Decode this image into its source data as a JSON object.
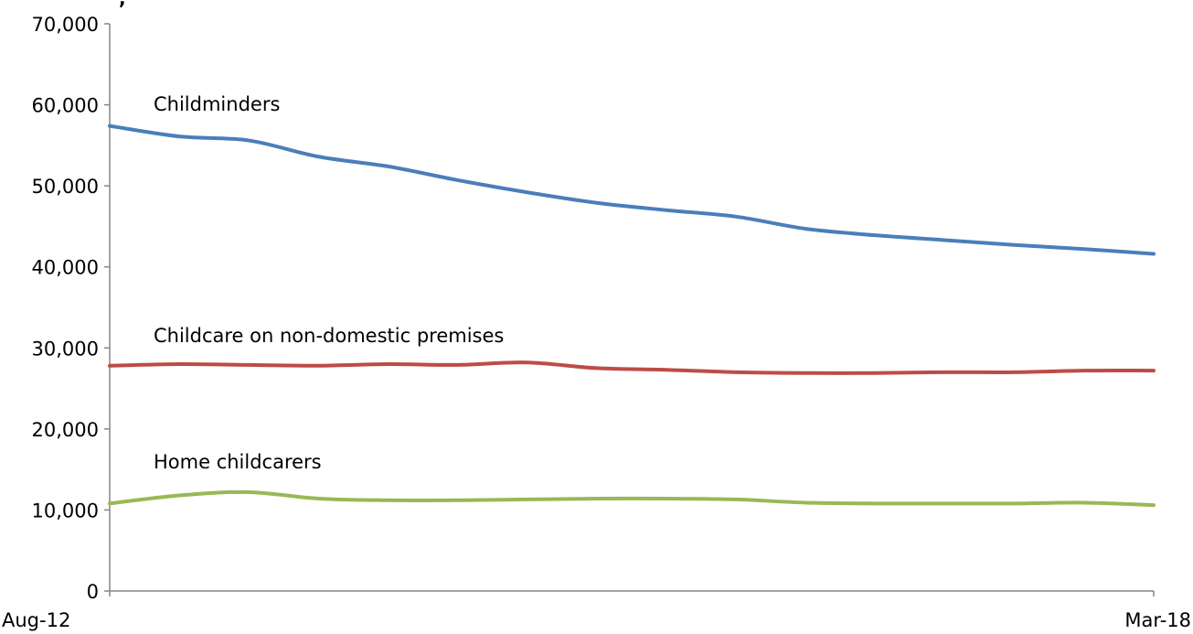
{
  "chart_data": {
    "type": "line",
    "title": "",
    "title_fragment": ", ",
    "xlabel": "",
    "ylabel": "",
    "x_tick_labels": [
      "Aug-12",
      "Mar-18"
    ],
    "x": [
      "Aug-12",
      "",
      "",
      "",
      "",
      "",
      "",
      "",
      "",
      "",
      "",
      "",
      "",
      "",
      "",
      "Mar-18"
    ],
    "y_ticks": [
      "0",
      "10,000",
      "20,000",
      "30,000",
      "40,000",
      "50,000",
      "60,000",
      "70,000"
    ],
    "ylim": [
      0,
      70000
    ],
    "grid": false,
    "legend": "none",
    "series": [
      {
        "name": "Childminders",
        "color": "#4a7ebb",
        "values": [
          57400,
          56100,
          55600,
          53600,
          52400,
          50700,
          49200,
          47900,
          47000,
          46200,
          44700,
          43900,
          43300,
          42700,
          42200,
          41600
        ]
      },
      {
        "name": "Childcare on non-domestic premises",
        "color": "#be4b48",
        "values": [
          27800,
          28000,
          27900,
          27800,
          28000,
          27900,
          28200,
          27500,
          27300,
          27000,
          26900,
          26900,
          27000,
          27000,
          27200,
          27200
        ]
      },
      {
        "name": "Home childcarers",
        "color": "#98b954",
        "values": [
          10800,
          11800,
          12200,
          11400,
          11200,
          11200,
          11300,
          11400,
          11400,
          11300,
          10900,
          10800,
          10800,
          10800,
          10900,
          10600
        ]
      }
    ]
  }
}
